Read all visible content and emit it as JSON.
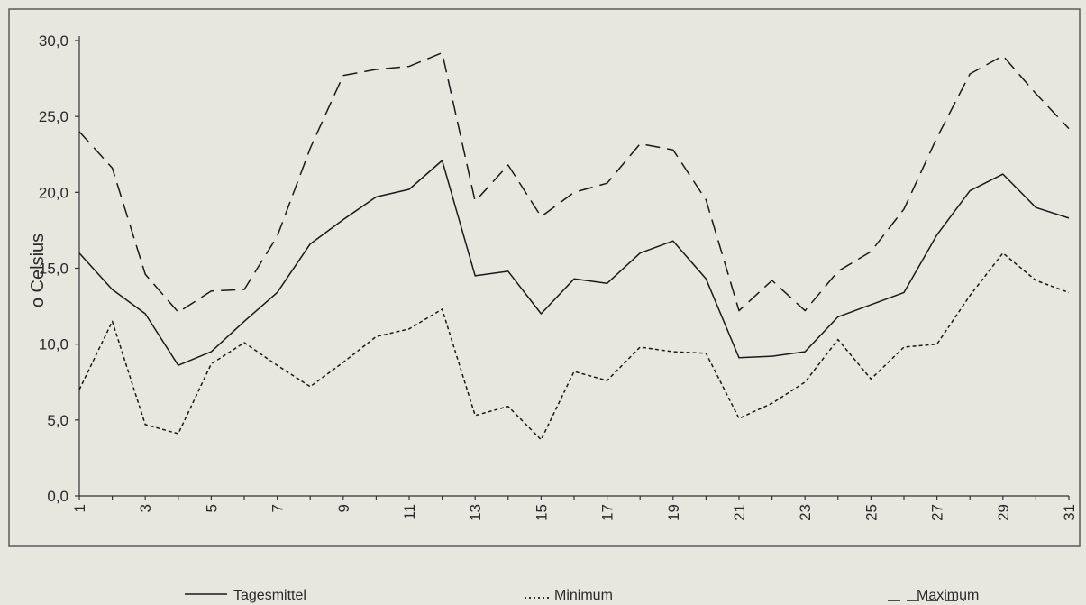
{
  "chart_data": {
    "type": "line",
    "ylabel": "o Celsius",
    "xlabel": "",
    "ylim": [
      0,
      30
    ],
    "yticks": [
      "0,0",
      "5,0",
      "10,0",
      "15,0",
      "20,0",
      "25,0",
      "30,0"
    ],
    "yticks_values": [
      0,
      5,
      10,
      15,
      20,
      25,
      30
    ],
    "x": [
      1,
      2,
      3,
      4,
      5,
      6,
      7,
      8,
      9,
      10,
      11,
      12,
      13,
      14,
      15,
      16,
      17,
      18,
      19,
      20,
      21,
      22,
      23,
      24,
      25,
      26,
      27,
      28,
      29,
      30,
      31
    ],
    "xtick_labels": [
      "1",
      "3",
      "5",
      "7",
      "9",
      "11",
      "13",
      "15",
      "17",
      "19",
      "21",
      "23",
      "25",
      "27",
      "29",
      "31"
    ],
    "grid": false,
    "legend_placement": "bottom",
    "series": [
      {
        "name": "Tagesmittel",
        "style": "solid",
        "values": [
          16.0,
          13.6,
          12.0,
          8.6,
          9.5,
          11.5,
          13.4,
          16.6,
          18.2,
          19.7,
          20.2,
          22.1,
          14.5,
          14.8,
          12.0,
          14.3,
          14.0,
          16.0,
          16.8,
          14.3,
          9.1,
          9.2,
          9.5,
          11.8,
          12.6,
          13.4,
          17.2,
          20.1,
          21.2,
          19.0,
          18.3
        ]
      },
      {
        "name": "Minimum",
        "style": "dotted",
        "values": [
          7.0,
          11.5,
          4.7,
          4.1,
          8.7,
          10.1,
          8.6,
          7.2,
          8.8,
          10.5,
          11.0,
          12.3,
          5.3,
          5.9,
          3.7,
          8.2,
          7.6,
          9.8,
          9.5,
          9.4,
          5.1,
          6.1,
          7.5,
          10.3,
          7.7,
          9.8,
          10.0,
          13.2,
          16.0,
          14.2,
          13.4
        ]
      },
      {
        "name": "Maximum",
        "style": "dashed",
        "values": [
          24.0,
          21.6,
          14.6,
          12.1,
          13.5,
          13.6,
          17.1,
          22.9,
          27.7,
          28.1,
          28.3,
          29.2,
          19.4,
          21.8,
          18.4,
          20.0,
          20.6,
          23.2,
          22.8,
          19.5,
          12.2,
          14.2,
          12.2,
          14.8,
          16.1,
          18.9,
          23.6,
          27.8,
          29.0,
          26.5,
          24.2
        ]
      }
    ],
    "colors": {
      "line": "#1a1a1a",
      "background": "#e7e7e0",
      "frame": "#5a5a5a"
    }
  }
}
